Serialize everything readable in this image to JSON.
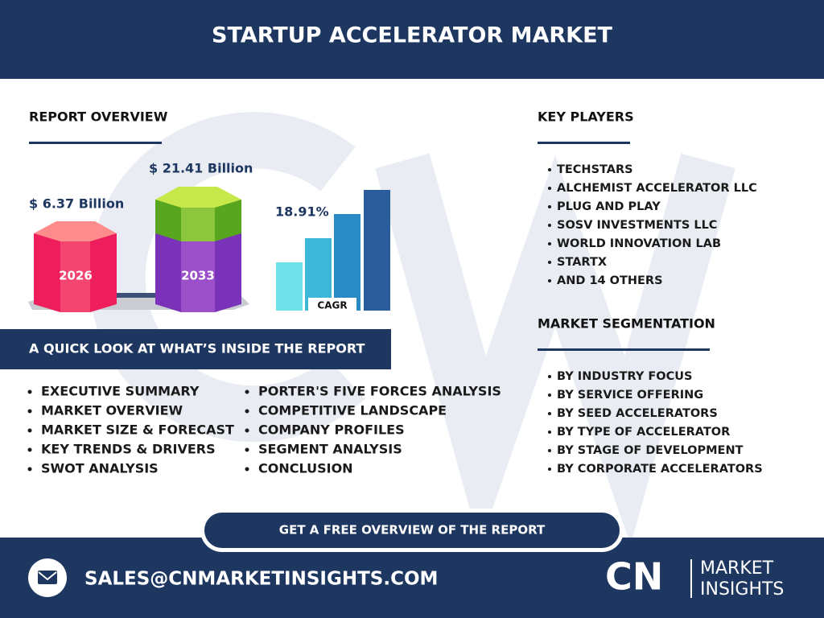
{
  "header": {
    "title": "STARTUP ACCELERATOR MARKET"
  },
  "overview": {
    "heading": "REPORT OVERVIEW",
    "value_2026": "$ 6.37 Billion",
    "year_2026": "2026",
    "value_2033": "$ 21.41 Billion",
    "year_2033": "2033",
    "cagr_value": "18.91%",
    "cagr_label": "CAGR"
  },
  "quick_look": {
    "heading": "A QUICK LOOK AT WHAT’S INSIDE THE REPORT",
    "column1": [
      "EXECUTIVE SUMMARY",
      "MARKET OVERVIEW",
      "MARKET SIZE & FORECAST",
      "KEY TRENDS & DRIVERS",
      "SWOT ANALYSIS"
    ],
    "column2": [
      "PORTER'S FIVE FORCES ANALYSIS",
      "COMPETITIVE LANDSCAPE",
      "COMPANY PROFILES",
      "SEGMENT ANALYSIS",
      "CONCLUSION"
    ]
  },
  "key_players": {
    "heading": "KEY PLAYERS",
    "items": [
      "TECHSTARS",
      "ALCHEMIST ACCELERATOR LLC",
      "PLUG AND PLAY",
      "SOSV INVESTMENTS LLC",
      "WORLD INNOVATION LAB",
      "STARTX",
      "AND 14 OTHERS"
    ]
  },
  "segmentation": {
    "heading": "MARKET SEGMENTATION",
    "items": [
      "BY INDUSTRY FOCUS",
      "BY SERVICE OFFERING",
      "BY SEED ACCELERATORS",
      "BY TYPE OF ACCELERATOR",
      "BY STAGE OF DEVELOPMENT",
      "BY CORPORATE ACCELERATORS"
    ]
  },
  "cta": {
    "label": "GET A FREE OVERVIEW OF THE REPORT"
  },
  "footer": {
    "email": "SALES@CNMARKETINSIGHTS.COM",
    "logo_mark": "CN",
    "logo_lines": [
      "MARKET",
      "INSIGHTS"
    ]
  }
}
